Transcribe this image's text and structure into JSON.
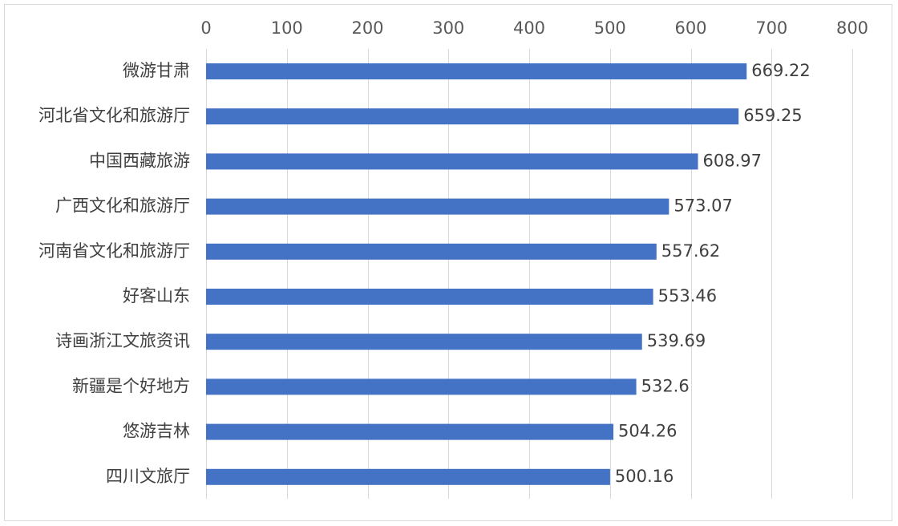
{
  "chart_data": {
    "type": "bar",
    "orientation": "horizontal",
    "categories": [
      "微游甘肃",
      "河北省文化和旅游厅",
      "中国西藏旅游",
      "广西文化和旅游厅",
      "河南省文化和旅游厅",
      "好客山东",
      "诗画浙江文旅资讯",
      "新疆是个好地方",
      "悠游吉林",
      "四川文旅厅"
    ],
    "values": [
      669.22,
      659.25,
      608.97,
      573.07,
      557.62,
      553.46,
      539.69,
      532.6,
      504.26,
      500.16
    ],
    "value_labels": [
      "669.22",
      "659.25",
      "608.97",
      "573.07",
      "557.62",
      "553.46",
      "539.69",
      "532.6",
      "504.26",
      "500.16"
    ],
    "xlim": [
      0,
      800
    ],
    "x_ticks": [
      "0",
      "100",
      "200",
      "300",
      "400",
      "500",
      "600",
      "700",
      "800"
    ],
    "x_axis_position": "top",
    "grid": true,
    "legend": "none",
    "bar_color": "#4472C4",
    "title": "",
    "xlabel": "",
    "ylabel": ""
  }
}
